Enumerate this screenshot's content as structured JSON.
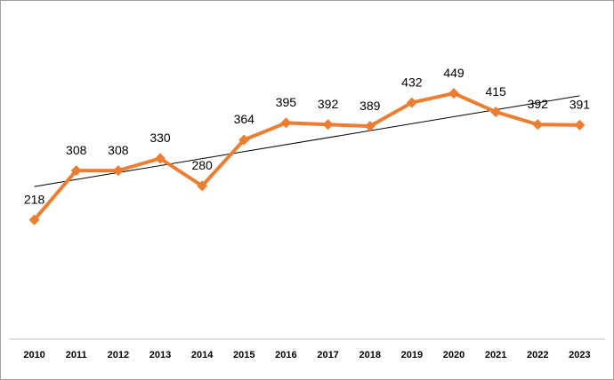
{
  "chart_data": {
    "type": "line",
    "categories": [
      "2010",
      "2011",
      "2012",
      "2013",
      "2014",
      "2015",
      "2016",
      "2017",
      "2018",
      "2019",
      "2020",
      "2021",
      "2022",
      "2023"
    ],
    "series": [
      {
        "values": [
          218,
          308,
          308,
          330,
          280,
          364,
          395,
          392,
          389,
          432,
          449,
          415,
          392,
          391
        ],
        "color": "#ed7d31"
      }
    ],
    "ylim": [
      0,
      600
    ],
    "data_labels": true,
    "trendline": true,
    "trendline_color": "#000000"
  }
}
